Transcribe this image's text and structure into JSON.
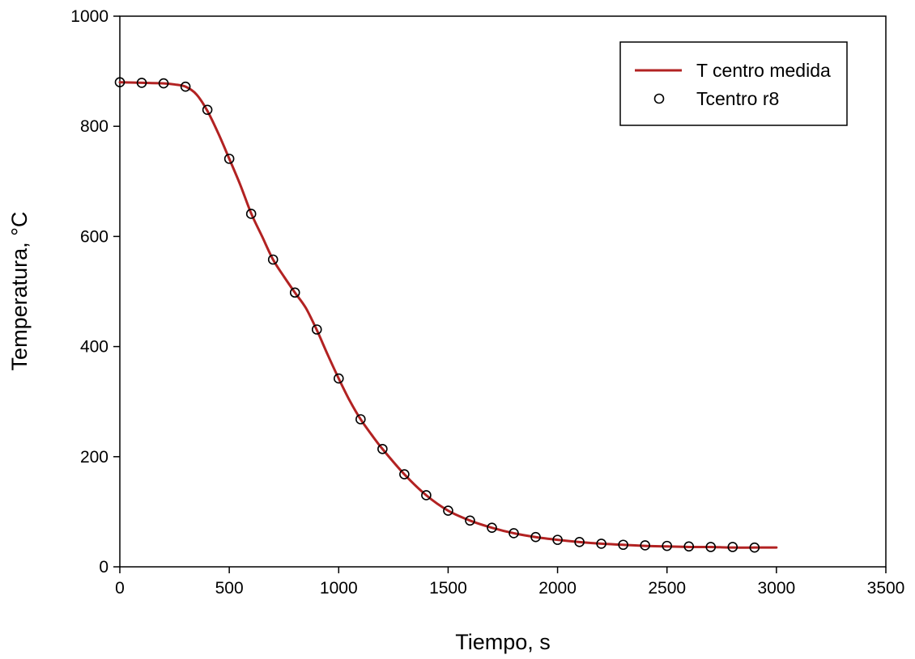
{
  "chart_data": {
    "type": "line",
    "title": "",
    "xlabel": "Tiempo, s",
    "ylabel": "Temperatura, °C",
    "xlim": [
      0,
      3500
    ],
    "ylim": [
      0,
      1000
    ],
    "x_ticks": [
      0,
      500,
      1000,
      1500,
      2000,
      2500,
      3000,
      3500
    ],
    "y_ticks": [
      0,
      200,
      400,
      600,
      800,
      1000
    ],
    "x_tick_labels": [
      "0",
      "500",
      "1000",
      "1500",
      "2000",
      "2500",
      "3000",
      "3500"
    ],
    "y_tick_labels": [
      "0",
      "200",
      "400",
      "600",
      "800",
      "1000"
    ],
    "grid": false,
    "legend_position": "top-right",
    "series": [
      {
        "name": "T centro medida",
        "kind": "line",
        "color": "#b22222",
        "x": [
          0,
          100,
          200,
          250,
          300,
          350,
          400,
          450,
          500,
          550,
          600,
          650,
          700,
          750,
          800,
          850,
          900,
          950,
          1000,
          1050,
          1100,
          1150,
          1200,
          1300,
          1400,
          1500,
          1600,
          1700,
          1800,
          1900,
          2000,
          2100,
          2200,
          2300,
          2400,
          2500,
          2600,
          2700,
          2800,
          2900,
          3000
        ],
        "y": [
          880,
          879,
          878,
          876,
          872,
          858,
          828,
          787,
          741,
          694,
          642,
          600,
          558,
          527,
          498,
          470,
          430,
          385,
          342,
          302,
          268,
          240,
          214,
          168,
          130,
          102,
          84,
          71,
          61,
          54,
          49,
          45,
          42,
          40,
          38,
          37,
          36,
          36,
          35,
          35,
          35
        ]
      },
      {
        "name": "Tcentro r8",
        "kind": "scatter",
        "color": "#000000",
        "x": [
          0,
          100,
          200,
          300,
          400,
          500,
          600,
          700,
          800,
          900,
          1000,
          1100,
          1200,
          1300,
          1400,
          1500,
          1600,
          1700,
          1800,
          1900,
          2000,
          2100,
          2200,
          2300,
          2400,
          2500,
          2600,
          2700,
          2800,
          2900
        ],
        "y": [
          880,
          879,
          878,
          872,
          830,
          741,
          641,
          558,
          498,
          431,
          342,
          268,
          214,
          168,
          130,
          102,
          84,
          71,
          61,
          54,
          49,
          45,
          42,
          40,
          39,
          38,
          37,
          36,
          36,
          35
        ]
      }
    ]
  }
}
